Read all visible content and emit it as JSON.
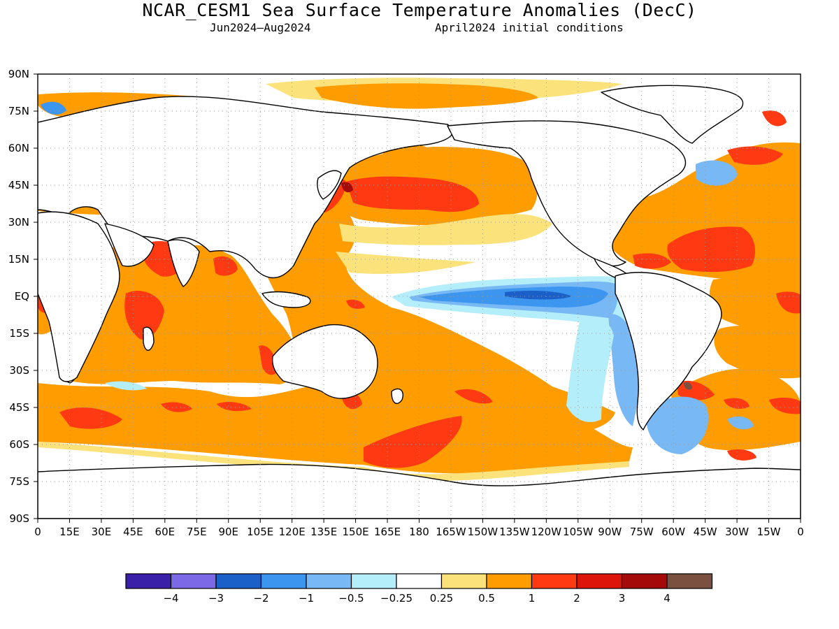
{
  "title": "NCAR_CESM1 Sea Surface Temperature Anomalies (DecC)",
  "subtitle_left": "Jun2024—Aug2024",
  "subtitle_right": "April2024 initial conditions",
  "lat_labels": [
    "90N",
    "75N",
    "60N",
    "45N",
    "30N",
    "15N",
    "EQ",
    "15S",
    "30S",
    "45S",
    "60S",
    "75S",
    "90S"
  ],
  "lon_labels": [
    "0",
    "15E",
    "30E",
    "45E",
    "60E",
    "75E",
    "90E",
    "105E",
    "120E",
    "135E",
    "150E",
    "165E",
    "180",
    "165W",
    "150W",
    "135W",
    "120W",
    "105W",
    "90W",
    "75W",
    "60W",
    "45W",
    "30W",
    "15W",
    "0"
  ],
  "colorbar": {
    "colors": [
      "#3a1fa8",
      "#7b69e6",
      "#1a60c8",
      "#3c96ef",
      "#78b8f5",
      "#b3eefa",
      "#ffffff",
      "#fce27a",
      "#ff9c00",
      "#ff3a12",
      "#dc140a",
      "#a50a0a",
      "#7a5140"
    ],
    "labels": [
      "−4",
      "−3",
      "−2",
      "−1",
      "−0.5",
      "−0.25",
      "0.25",
      "0.5",
      "1",
      "2",
      "3",
      "4"
    ]
  },
  "colors": {
    "orange": "#ff9c00",
    "yellow": "#fce27a",
    "red": "#ff3a12",
    "dark_red": "#dc140a",
    "light_blue": "#b3eefa",
    "mid_blue": "#78b8f5",
    "blue": "#3c96ef",
    "dark_blue": "#1a60c8",
    "brown": "#7a5140"
  }
}
